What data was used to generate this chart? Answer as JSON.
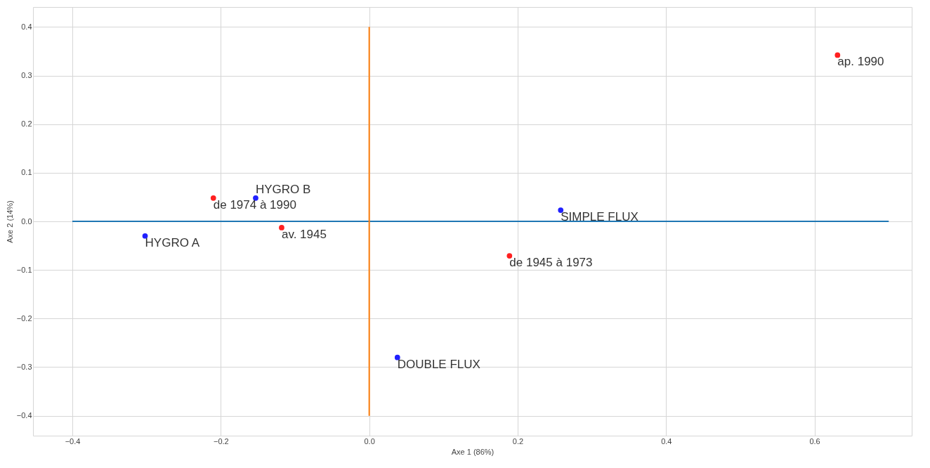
{
  "chart_data": {
    "type": "scatter",
    "xlabel": "Axe 1 (86%)",
    "ylabel": "Axe 2 (14%)",
    "grid": true,
    "xlim": [
      -0.453,
      0.731
    ],
    "ylim": [
      -0.441,
      0.441
    ],
    "xticks": [
      {
        "value": -0.4,
        "label": "−0.4"
      },
      {
        "value": -0.2,
        "label": "−0.2"
      },
      {
        "value": 0,
        "label": "0.0"
      },
      0.2,
      0.4,
      0.6
    ],
    "yticks": [
      {
        "value": -0.4,
        "label": "−0.4"
      },
      {
        "value": -0.3,
        "label": "−0.3"
      },
      {
        "value": -0.2,
        "label": "−0.2"
      },
      {
        "value": -0.1,
        "label": "−0.1"
      },
      {
        "value": 0,
        "label": "0.0"
      },
      0.1,
      0.2,
      0.3,
      0.4
    ],
    "series": [
      {
        "type": "line",
        "color": "#1f77b4",
        "marker": "none",
        "x": [
          -0.4,
          0.7
        ],
        "values": [
          0,
          0
        ]
      },
      {
        "type": "line",
        "color": "#ff7f0e",
        "marker": "none",
        "x": [
          0,
          0
        ],
        "values": [
          -0.4,
          0.4
        ]
      },
      {
        "color": "#ff2020",
        "marker": "circle",
        "x": [
          0.631,
          -0.21,
          -0.118,
          0.189
        ],
        "values": [
          0.342,
          0.048,
          -0.013,
          -0.071
        ]
      },
      {
        "color": "#2020ff",
        "marker": "circle",
        "x": [
          -0.153,
          -0.302,
          0.258,
          0.038
        ],
        "values": [
          0.048,
          -0.03,
          0.023,
          -0.28
        ]
      }
    ],
    "annotations": [
      {
        "text": "ap. 1990",
        "x": 0.631,
        "y": 0.342
      },
      {
        "text": "de 1974 à 1990",
        "x": -0.21,
        "y": 0.048
      },
      {
        "text": "av. 1945",
        "x": -0.118,
        "y": -0.013
      },
      {
        "text": "de 1945 à 1973",
        "x": 0.189,
        "y": -0.071
      },
      {
        "text": "HYGRO B",
        "x": -0.153,
        "y": 0.048
      },
      {
        "text": "HYGRO A",
        "x": -0.302,
        "y": -0.03
      },
      {
        "text": "SIMPLE FLUX",
        "x": 0.258,
        "y": 0.023
      },
      {
        "text": "DOUBLE FLUX",
        "x": 0.038,
        "y": -0.28
      }
    ]
  }
}
